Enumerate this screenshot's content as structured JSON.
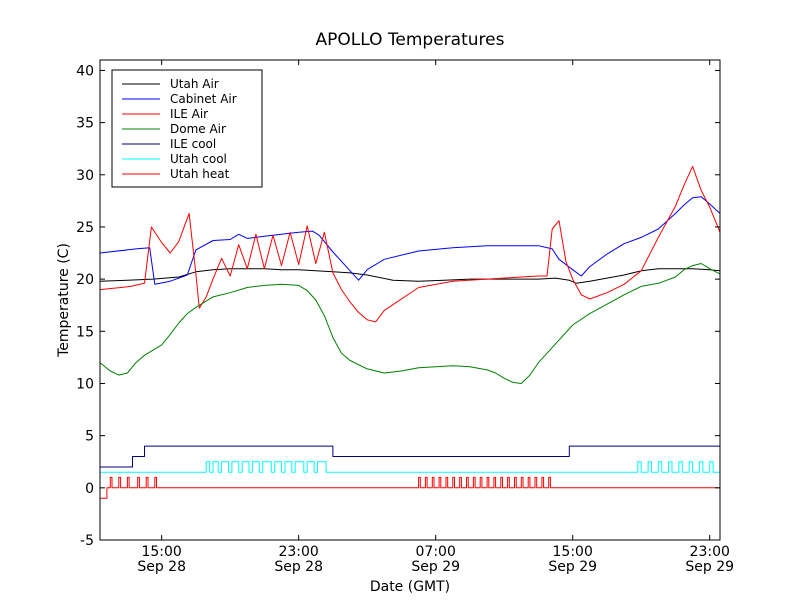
{
  "chart_data": {
    "type": "line",
    "title": "APOLLO Temperatures",
    "xlabel": "Date (GMT)",
    "ylabel": "Temperature (C)",
    "x_unit": "hours since Sep 28 00:00 GMT",
    "xlim": [
      11.4,
      47.6
    ],
    "ylim": [
      -5,
      41
    ],
    "yticks": [
      -5,
      0,
      5,
      10,
      15,
      20,
      25,
      30,
      35,
      40
    ],
    "xticks": [
      {
        "x": 15,
        "time": "15:00",
        "date": "Sep 28"
      },
      {
        "x": 23,
        "time": "23:00",
        "date": "Sep 28"
      },
      {
        "x": 31,
        "time": "07:00",
        "date": "Sep 29"
      },
      {
        "x": 39,
        "time": "15:00",
        "date": "Sep 29"
      },
      {
        "x": 47,
        "time": "23:00",
        "date": "Sep 29"
      }
    ],
    "legend_position": "top-left",
    "series": [
      {
        "name": "Utah Air",
        "color": "#000000",
        "x": [
          11.4,
          13.0,
          14.5,
          16.0,
          17.0,
          18.0,
          19.0,
          20.0,
          21.0,
          22.0,
          23.0,
          24.0,
          25.0,
          26.0,
          27.0,
          28.5,
          30.0,
          31.5,
          33.0,
          34.5,
          36.0,
          37.0,
          38.0,
          38.8,
          39.2,
          40.0,
          41.0,
          42.0,
          43.0,
          44.0,
          45.0,
          46.0,
          47.0,
          47.6
        ],
        "y": [
          19.8,
          19.9,
          20.0,
          20.2,
          20.7,
          20.9,
          21.0,
          21.0,
          21.0,
          20.9,
          20.9,
          20.8,
          20.7,
          20.6,
          20.4,
          19.9,
          19.8,
          19.9,
          20.0,
          20.0,
          20.0,
          20.0,
          20.1,
          19.9,
          19.6,
          19.8,
          20.1,
          20.4,
          20.8,
          21.0,
          21.0,
          21.0,
          20.9,
          20.8
        ]
      },
      {
        "name": "Cabinet Air",
        "color": "#0000ff",
        "x": [
          11.4,
          13.5,
          14.3,
          14.6,
          15.5,
          16.5,
          17.0,
          18.0,
          19.0,
          19.5,
          20.0,
          21.0,
          22.0,
          23.0,
          23.8,
          24.2,
          25.0,
          26.0,
          26.5,
          27.0,
          28.0,
          30.0,
          32.0,
          34.0,
          36.0,
          37.0,
          37.8,
          38.2,
          39.0,
          39.5,
          40.0,
          41.0,
          42.0,
          43.0,
          44.0,
          45.0,
          45.5,
          46.0,
          46.5,
          47.0,
          47.6
        ],
        "y": [
          22.5,
          22.9,
          23.0,
          19.5,
          19.8,
          20.4,
          22.8,
          23.7,
          23.8,
          24.3,
          23.9,
          24.1,
          24.3,
          24.5,
          24.6,
          24.2,
          22.6,
          20.8,
          19.9,
          20.9,
          21.9,
          22.7,
          23.0,
          23.2,
          23.2,
          23.2,
          22.9,
          21.9,
          20.9,
          20.3,
          21.2,
          22.4,
          23.4,
          24.0,
          24.8,
          26.3,
          27.1,
          27.8,
          27.9,
          27.2,
          26.3
        ]
      },
      {
        "name": "ILE Air",
        "color": "#ff0000",
        "x": [
          11.4,
          13.2,
          14.0,
          14.4,
          15.0,
          15.5,
          16.0,
          16.6,
          17.0,
          17.2,
          17.6,
          18.0,
          18.5,
          19.0,
          19.5,
          20.0,
          20.5,
          21.0,
          21.5,
          22.0,
          22.5,
          23.0,
          23.5,
          24.0,
          24.5,
          25.0,
          25.5,
          26.0,
          26.5,
          27.0,
          27.5,
          28.0,
          30.0,
          32.0,
          34.0,
          36.0,
          37.0,
          37.5,
          37.8,
          38.2,
          38.6,
          39.0,
          39.5,
          40.0,
          41.0,
          42.0,
          43.0,
          44.0,
          45.0,
          45.5,
          46.0,
          46.5,
          47.0,
          47.6
        ],
        "y": [
          19.0,
          19.3,
          19.6,
          25.0,
          23.5,
          22.5,
          23.6,
          26.3,
          20.5,
          17.2,
          18.3,
          20.0,
          22.0,
          20.3,
          23.3,
          21.0,
          24.3,
          21.0,
          24.2,
          21.3,
          24.5,
          21.4,
          25.1,
          21.5,
          24.5,
          20.6,
          19.0,
          17.8,
          16.8,
          16.1,
          15.9,
          17.0,
          19.2,
          19.8,
          20.0,
          20.2,
          20.3,
          20.3,
          24.8,
          25.6,
          21.7,
          20.0,
          18.5,
          18.1,
          18.7,
          19.5,
          20.8,
          24.0,
          27.0,
          29.0,
          30.8,
          28.5,
          26.9,
          24.5
        ]
      },
      {
        "name": "Dome Air",
        "color": "#008000",
        "x": [
          11.4,
          12.0,
          12.5,
          13.0,
          13.5,
          14.0,
          14.5,
          15.0,
          15.5,
          16.0,
          16.5,
          17.0,
          18.0,
          19.0,
          20.0,
          21.0,
          22.0,
          23.0,
          23.5,
          24.0,
          24.5,
          25.0,
          25.5,
          26.0,
          27.0,
          28.0,
          29.0,
          30.0,
          31.0,
          32.0,
          33.0,
          34.0,
          34.5,
          35.0,
          35.5,
          36.0,
          36.5,
          37.0,
          38.0,
          39.0,
          40.0,
          41.0,
          42.0,
          43.0,
          44.0,
          45.0,
          45.5,
          46.0,
          46.5,
          47.0,
          47.6
        ],
        "y": [
          12.0,
          11.2,
          10.8,
          11.0,
          12.0,
          12.7,
          13.2,
          13.7,
          14.7,
          15.8,
          16.7,
          17.3,
          18.3,
          18.7,
          19.2,
          19.4,
          19.5,
          19.4,
          18.9,
          18.0,
          16.5,
          14.4,
          12.9,
          12.2,
          11.4,
          11.0,
          11.2,
          11.5,
          11.6,
          11.7,
          11.6,
          11.3,
          11.0,
          10.5,
          10.1,
          10.0,
          10.8,
          12.0,
          13.8,
          15.6,
          16.7,
          17.6,
          18.5,
          19.3,
          19.6,
          20.2,
          20.9,
          21.3,
          21.5,
          21.0,
          20.5
        ]
      },
      {
        "name": "ILE cool",
        "color": "#000080",
        "x": [
          11.4,
          13.3,
          13.3,
          14.0,
          14.0,
          25.0,
          25.0,
          38.8,
          38.8,
          47.6
        ],
        "y": [
          2.0,
          2.0,
          3.0,
          3.0,
          4.0,
          4.0,
          3.0,
          3.0,
          4.0,
          4.0
        ]
      },
      {
        "name": "Utah cool",
        "color": "#00ffff",
        "x": [
          11.4,
          17.6,
          17.6,
          17.8,
          17.8,
          18.0,
          18.0,
          18.3,
          18.3,
          18.5,
          18.5,
          18.9,
          18.9,
          19.1,
          19.1,
          19.5,
          19.5,
          19.7,
          19.7,
          20.1,
          20.1,
          20.3,
          20.3,
          20.7,
          20.7,
          20.9,
          20.9,
          21.4,
          21.4,
          21.6,
          21.6,
          22.0,
          22.0,
          22.2,
          22.2,
          22.6,
          22.6,
          22.8,
          22.8,
          23.3,
          23.3,
          23.5,
          23.5,
          23.9,
          23.9,
          24.1,
          24.1,
          24.6,
          24.6,
          24.8,
          24.8,
          42.8,
          42.8,
          43.0,
          43.0,
          43.4,
          43.4,
          43.6,
          43.6,
          44.0,
          44.0,
          44.2,
          44.2,
          44.6,
          44.6,
          44.8,
          44.8,
          45.2,
          45.2,
          45.4,
          45.4,
          45.8,
          45.8,
          46.0,
          46.0,
          46.4,
          46.4,
          46.6,
          46.6,
          47.0,
          47.0,
          47.2,
          47.2,
          47.6
        ],
        "y": [
          1.5,
          1.5,
          2.5,
          2.5,
          1.5,
          1.5,
          2.5,
          2.5,
          1.5,
          1.5,
          2.5,
          2.5,
          1.5,
          1.5,
          2.5,
          2.5,
          1.5,
          1.5,
          2.5,
          2.5,
          1.5,
          1.5,
          2.5,
          2.5,
          1.5,
          1.5,
          2.5,
          2.5,
          1.5,
          1.5,
          2.5,
          2.5,
          1.5,
          1.5,
          2.5,
          2.5,
          1.5,
          1.5,
          2.5,
          2.5,
          1.5,
          1.5,
          2.5,
          2.5,
          1.5,
          1.5,
          2.5,
          2.5,
          1.5,
          1.5,
          1.5,
          1.5,
          2.5,
          2.5,
          1.5,
          1.5,
          2.5,
          2.5,
          1.5,
          1.5,
          2.5,
          2.5,
          1.5,
          1.5,
          2.5,
          2.5,
          1.5,
          1.5,
          2.5,
          2.5,
          1.5,
          1.5,
          2.5,
          2.5,
          1.5,
          1.5,
          2.5,
          2.5,
          1.5,
          1.5,
          2.5,
          2.5,
          1.5,
          1.5
        ]
      },
      {
        "name": "Utah heat",
        "color": "#ff0000",
        "x": [
          11.4,
          11.8,
          11.8,
          12.0,
          12.0,
          12.1,
          12.1,
          12.5,
          12.5,
          12.6,
          12.6,
          13.0,
          13.0,
          13.1,
          13.1,
          13.6,
          13.6,
          13.7,
          13.7,
          14.1,
          14.1,
          14.2,
          14.2,
          14.6,
          14.6,
          14.7,
          14.7,
          30.0,
          30.0,
          30.1,
          30.1,
          30.4,
          30.4,
          30.5,
          30.5,
          30.8,
          30.8,
          30.9,
          30.9,
          31.2,
          31.2,
          31.3,
          31.3,
          31.6,
          31.6,
          31.7,
          31.7,
          32.0,
          32.0,
          32.1,
          32.1,
          32.4,
          32.4,
          32.5,
          32.5,
          32.8,
          32.8,
          32.9,
          32.9,
          33.2,
          33.2,
          33.3,
          33.3,
          33.6,
          33.6,
          33.7,
          33.7,
          34.0,
          34.0,
          34.1,
          34.1,
          34.4,
          34.4,
          34.5,
          34.5,
          34.8,
          34.8,
          34.9,
          34.9,
          35.2,
          35.2,
          35.3,
          35.3,
          35.6,
          35.6,
          35.7,
          35.7,
          36.0,
          36.0,
          36.1,
          36.1,
          36.4,
          36.4,
          36.5,
          36.5,
          36.8,
          36.8,
          36.9,
          36.9,
          37.2,
          37.2,
          37.3,
          37.3,
          37.6,
          37.6,
          37.7,
          37.7,
          47.6
        ],
        "y": [
          -1.0,
          -1.0,
          0.0,
          0.0,
          1.0,
          1.0,
          0.0,
          0.0,
          1.0,
          1.0,
          0.0,
          0.0,
          1.0,
          1.0,
          0.0,
          0.0,
          1.0,
          1.0,
          0.0,
          0.0,
          1.0,
          1.0,
          0.0,
          0.0,
          1.0,
          1.0,
          0.0,
          0.0,
          1.0,
          1.0,
          0.0,
          0.0,
          1.0,
          1.0,
          0.0,
          0.0,
          1.0,
          1.0,
          0.0,
          0.0,
          1.0,
          1.0,
          0.0,
          0.0,
          1.0,
          1.0,
          0.0,
          0.0,
          1.0,
          1.0,
          0.0,
          0.0,
          1.0,
          1.0,
          0.0,
          0.0,
          1.0,
          1.0,
          0.0,
          0.0,
          1.0,
          1.0,
          0.0,
          0.0,
          1.0,
          1.0,
          0.0,
          0.0,
          1.0,
          1.0,
          0.0,
          0.0,
          1.0,
          1.0,
          0.0,
          0.0,
          1.0,
          1.0,
          0.0,
          0.0,
          1.0,
          1.0,
          0.0,
          0.0,
          1.0,
          1.0,
          0.0,
          0.0,
          1.0,
          1.0,
          0.0,
          0.0,
          1.0,
          1.0,
          0.0,
          0.0,
          1.0,
          1.0,
          0.0,
          0.0,
          1.0,
          1.0,
          0.0,
          0.0,
          1.0,
          1.0,
          0.0,
          0.0
        ]
      }
    ]
  }
}
